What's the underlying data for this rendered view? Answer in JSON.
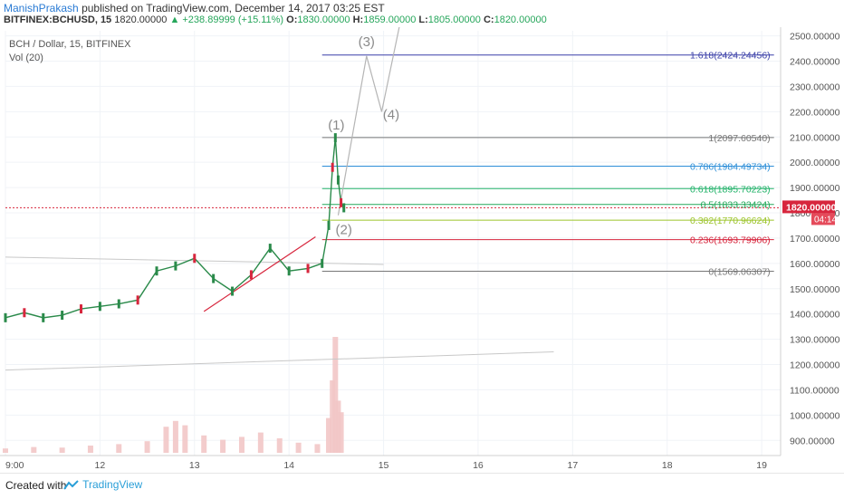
{
  "header": {
    "author": "ManishPrakash",
    "published": "published on TradingView.com, December 14, 2017 03:25 EST",
    "symbol": "BITFINEX:BCHUSD, 15",
    "last": "1820.00000",
    "change": "▲ +238.89999 (+15.11%)",
    "o_label": "O:",
    "o_value": "1830.00000",
    "h_label": "H:",
    "h_value": "1859.00000",
    "l_label": "L:",
    "l_value": "1805.00000",
    "c_label": "C:",
    "c_value": "1820.00000"
  },
  "chart_data": {
    "type": "line",
    "title": "BCH / Dollar, 15, BITFINEX",
    "indicator": "Vol (20)",
    "xlabel": "",
    "ylabel": "",
    "ylim": [
      840,
      2520
    ],
    "xlim": [
      11.0,
      19.2
    ],
    "x_ticks": [
      {
        "label": "9:00",
        "x": 11.0
      },
      {
        "label": "12",
        "x": 12
      },
      {
        "label": "13",
        "x": 13
      },
      {
        "label": "14",
        "x": 14
      },
      {
        "label": "15",
        "x": 15
      },
      {
        "label": "16",
        "x": 16
      },
      {
        "label": "17",
        "x": 17
      },
      {
        "label": "18",
        "x": 18
      },
      {
        "label": "19",
        "x": 19
      }
    ],
    "y_ticks": [
      "2500.00000",
      "2400.00000",
      "2300.00000",
      "2200.00000",
      "2100.00000",
      "2000.00000",
      "1900.00000",
      "1800.00000",
      "1700.00000",
      "1600.00000",
      "1500.00000",
      "1400.00000",
      "1300.00000",
      "1200.00000",
      "1100.00000",
      "1000.00000",
      "900.00000"
    ],
    "price_series": {
      "name": "",
      "x": [
        11.0,
        11.2,
        11.4,
        11.6,
        11.8,
        12.0,
        12.2,
        12.4,
        12.6,
        12.8,
        13.0,
        13.2,
        13.4,
        13.6,
        13.8,
        14.0,
        14.2,
        14.35,
        14.42,
        14.46,
        14.49,
        14.52,
        14.55,
        14.58
      ],
      "values": [
        1385,
        1405,
        1385,
        1395,
        1420,
        1430,
        1440,
        1455,
        1570,
        1590,
        1620,
        1540,
        1490,
        1555,
        1660,
        1570,
        1580,
        1600,
        1750,
        1980,
        2097,
        1930,
        1840,
        1820
      ]
    },
    "current_price": {
      "label": "1820.00000",
      "value": 1820,
      "countdown": "04:14"
    },
    "fibonacci": [
      {
        "label": "1.618(2424.24456)",
        "value": 2424.24456,
        "color": "#3a3fa8"
      },
      {
        "label": "1(2097.60540)",
        "value": 2097.6054,
        "color": "#777777"
      },
      {
        "label": "0.786(1984.49734)",
        "value": 1984.49734,
        "color": "#2f8fd8"
      },
      {
        "label": "0.618(1895.70223)",
        "value": 1895.70223,
        "color": "#23b36a"
      },
      {
        "label": "0.5(1833.33424)",
        "value": 1833.33424,
        "color": "#23a85a"
      },
      {
        "label": "0.382(1770.96624)",
        "value": 1770.96624,
        "color": "#9cc42a"
      },
      {
        "label": "0.236(1693.79906)",
        "value": 1693.79906,
        "color": "#d7263d"
      },
      {
        "label": "0(1569.06307)",
        "value": 1569.06307,
        "color": "#777777"
      }
    ],
    "elliott_labels": [
      {
        "label": "(1)",
        "x": 14.5,
        "y": 2130
      },
      {
        "label": "(2)",
        "x": 14.58,
        "y": 1715
      },
      {
        "label": "(3)",
        "x": 14.82,
        "y": 2460
      },
      {
        "label": "(4)",
        "x": 15.08,
        "y": 2170
      }
    ],
    "elliott_path": {
      "x": [
        14.52,
        14.82,
        14.98,
        15.18
      ],
      "y": [
        1790,
        2420,
        2200,
        2560
      ]
    },
    "trend_line": {
      "x": [
        13.1,
        14.28
      ],
      "y": [
        1410,
        1705
      ]
    },
    "gray_line_1": {
      "x": [
        11.0,
        15.0
      ],
      "y": [
        1625,
        1596
      ]
    },
    "gray_line_2": {
      "x": [
        11.0,
        16.8
      ],
      "y": [
        1178,
        1250
      ]
    },
    "volume": {
      "x": [
        11.0,
        11.3,
        11.6,
        11.9,
        12.2,
        12.5,
        12.7,
        12.8,
        12.9,
        13.1,
        13.3,
        13.5,
        13.7,
        13.9,
        14.1,
        14.3,
        14.42,
        14.46,
        14.49,
        14.52,
        14.55
      ],
      "values": [
        15,
        20,
        18,
        25,
        30,
        40,
        90,
        110,
        95,
        60,
        45,
        55,
        70,
        50,
        35,
        30,
        120,
        250,
        400,
        180,
        140
      ]
    }
  },
  "footer": {
    "created": "Created with",
    "brand": "TradingView"
  }
}
